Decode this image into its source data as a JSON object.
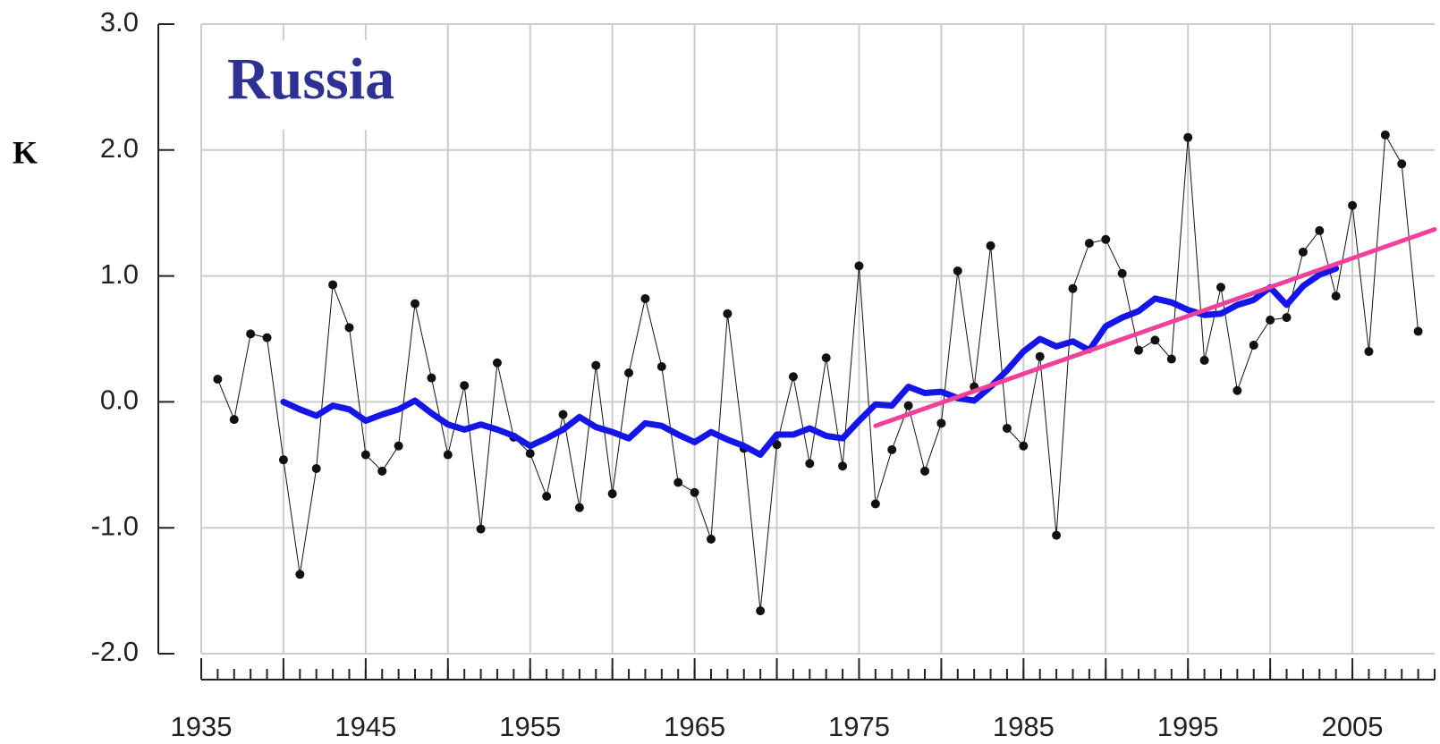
{
  "chart_data": {
    "type": "line",
    "title": "Russia",
    "y_label": "K",
    "xlim": [
      1935,
      2010
    ],
    "ylim": [
      -2.0,
      3.0
    ],
    "xticks": [
      1935,
      1945,
      1955,
      1965,
      1975,
      1985,
      1995,
      2005
    ],
    "xgrid_extra": [
      1940,
      1950,
      1960,
      1970,
      1980,
      1990,
      2000
    ],
    "yticks": [
      {
        "value": -2.0,
        "label": "-2.0"
      },
      {
        "value": -1.0,
        "label": "-1.0"
      },
      {
        "value": 0.0,
        "label": "0.0"
      },
      {
        "value": 1.0,
        "label": "1.0"
      },
      {
        "value": 2.0,
        "label": "2.0"
      },
      {
        "value": 3.0,
        "label": "3.0"
      }
    ],
    "grid": true,
    "series": [
      {
        "color": "#111111",
        "line_width": 1,
        "markers": true,
        "x": [
          1936,
          1937,
          1938,
          1939,
          1940,
          1941,
          1942,
          1943,
          1944,
          1945,
          1946,
          1947,
          1948,
          1949,
          1950,
          1951,
          1952,
          1953,
          1954,
          1955,
          1956,
          1957,
          1958,
          1959,
          1960,
          1961,
          1962,
          1963,
          1964,
          1965,
          1966,
          1967,
          1968,
          1969,
          1970,
          1971,
          1972,
          1973,
          1974,
          1975,
          1976,
          1977,
          1978,
          1979,
          1980,
          1981,
          1982,
          1983,
          1984,
          1985,
          1986,
          1987,
          1988,
          1989,
          1990,
          1991,
          1992,
          1993,
          1994,
          1995,
          1996,
          1997,
          1998,
          1999,
          2000,
          2001,
          2002,
          2003,
          2004,
          2005,
          2006,
          2007,
          2008,
          2009
        ],
        "values": [
          0.18,
          -0.14,
          0.54,
          0.51,
          -0.46,
          -1.37,
          -0.53,
          0.93,
          0.59,
          -0.42,
          -0.55,
          -0.35,
          0.78,
          0.19,
          -0.42,
          0.13,
          -1.01,
          0.31,
          -0.28,
          -0.41,
          -0.75,
          -0.1,
          -0.84,
          0.29,
          -0.73,
          0.23,
          0.82,
          0.28,
          -0.64,
          -0.72,
          -1.09,
          0.7,
          -0.37,
          -1.66,
          -0.34,
          0.2,
          -0.49,
          0.35,
          -0.51,
          1.08,
          -0.81,
          -0.38,
          -0.03,
          -0.55,
          -0.17,
          1.04,
          0.12,
          1.24,
          -0.21,
          -0.35,
          0.36,
          -1.06,
          0.9,
          1.26,
          1.29,
          1.02,
          0.41,
          0.49,
          0.34,
          2.1,
          0.33,
          0.91,
          0.09,
          0.45,
          0.65,
          0.67,
          1.19,
          1.36,
          0.84,
          1.56,
          0.4,
          2.12,
          1.89,
          0.56
        ]
      },
      {
        "color": "#1515e6",
        "line_width": 7,
        "markers": false,
        "x": [
          1940,
          1941,
          1942,
          1943,
          1944,
          1945,
          1946,
          1947,
          1948,
          1949,
          1950,
          1951,
          1952,
          1953,
          1954,
          1955,
          1956,
          1957,
          1958,
          1959,
          1960,
          1961,
          1962,
          1963,
          1964,
          1965,
          1966,
          1967,
          1968,
          1969,
          1970,
          1971,
          1972,
          1973,
          1974,
          1975,
          1976,
          1977,
          1978,
          1979,
          1980,
          1981,
          1982,
          1983,
          1984,
          1985,
          1986,
          1987,
          1988,
          1989,
          1990,
          1991,
          1992,
          1993,
          1994,
          1995,
          1996,
          1997,
          1998,
          1999,
          2000,
          2001,
          2002,
          2003,
          2004
        ],
        "values": [
          0.0,
          -0.06,
          -0.11,
          -0.03,
          -0.06,
          -0.15,
          -0.1,
          -0.06,
          0.01,
          -0.09,
          -0.18,
          -0.22,
          -0.18,
          -0.22,
          -0.27,
          -0.35,
          -0.29,
          -0.22,
          -0.12,
          -0.2,
          -0.24,
          -0.29,
          -0.17,
          -0.19,
          -0.26,
          -0.32,
          -0.24,
          -0.3,
          -0.35,
          -0.42,
          -0.26,
          -0.26,
          -0.21,
          -0.27,
          -0.29,
          -0.15,
          -0.02,
          -0.03,
          0.12,
          0.07,
          0.08,
          0.03,
          0.01,
          0.12,
          0.25,
          0.4,
          0.5,
          0.44,
          0.48,
          0.41,
          0.6,
          0.67,
          0.72,
          0.82,
          0.79,
          0.73,
          0.69,
          0.7,
          0.77,
          0.81,
          0.91,
          0.77,
          0.92,
          1.01,
          1.06
        ]
      },
      {
        "color": "#f0419a",
        "line_width": 5,
        "markers": false,
        "x": [
          1976,
          2010
        ],
        "values": [
          -0.19,
          1.37
        ]
      }
    ]
  }
}
